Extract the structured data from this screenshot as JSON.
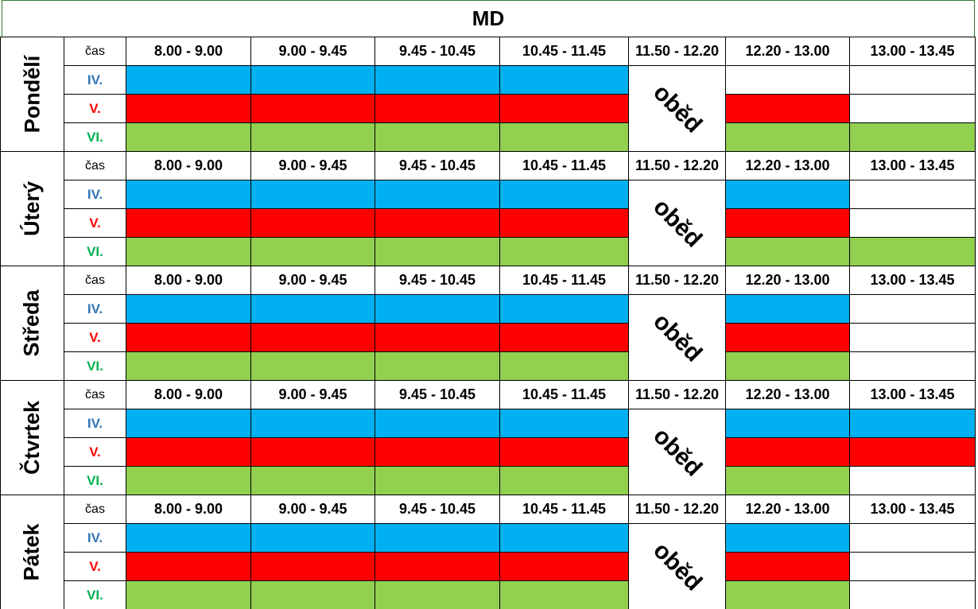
{
  "title": "MD",
  "time_label": "čas",
  "lunch": "oběd",
  "times": [
    "8.00 - 9.00",
    "9.00 - 9.45",
    "9.45 - 10.45",
    "10.45 - 11.45",
    "11.50 - 12.20",
    "12.20 - 13.00",
    "13.00 - 13.45"
  ],
  "levels": [
    {
      "label": "IV.",
      "color": "#2e75b6"
    },
    {
      "label": "V.",
      "color": "#ff0000"
    },
    {
      "label": "VI.",
      "color": "#00b050"
    }
  ],
  "days": [
    {
      "name": "Pondělí",
      "rows": [
        [
          "#00b0f0",
          "#00b0f0",
          "#00b0f0",
          "#00b0f0",
          null,
          "#ffffff",
          "#ffffff"
        ],
        [
          "#ff0000",
          "#ff0000",
          "#ff0000",
          "#ff0000",
          null,
          "#ff0000",
          "#ffffff"
        ],
        [
          "#92d050",
          "#92d050",
          "#92d050",
          "#92d050",
          null,
          "#92d050",
          "#92d050"
        ]
      ]
    },
    {
      "name": "Úterý",
      "rows": [
        [
          "#00b0f0",
          "#00b0f0",
          "#00b0f0",
          "#00b0f0",
          null,
          "#00b0f0",
          "#ffffff"
        ],
        [
          "#ff0000",
          "#ff0000",
          "#ff0000",
          "#ff0000",
          null,
          "#ff0000",
          "#ffffff"
        ],
        [
          "#92d050",
          "#92d050",
          "#92d050",
          "#92d050",
          null,
          "#92d050",
          "#92d050"
        ]
      ]
    },
    {
      "name": "Středa",
      "rows": [
        [
          "#00b0f0",
          "#00b0f0",
          "#00b0f0",
          "#00b0f0",
          null,
          "#00b0f0",
          "#ffffff"
        ],
        [
          "#ff0000",
          "#ff0000",
          "#ff0000",
          "#ff0000",
          null,
          "#ff0000",
          "#ffffff"
        ],
        [
          "#92d050",
          "#92d050",
          "#92d050",
          "#92d050",
          null,
          "#92d050",
          "#ffffff"
        ]
      ]
    },
    {
      "name": "Čtvrtek",
      "rows": [
        [
          "#00b0f0",
          "#00b0f0",
          "#00b0f0",
          "#00b0f0",
          null,
          "#00b0f0",
          "#00b0f0"
        ],
        [
          "#ff0000",
          "#ff0000",
          "#ff0000",
          "#ff0000",
          null,
          "#ff0000",
          "#ff0000"
        ],
        [
          "#92d050",
          "#92d050",
          "#92d050",
          "#92d050",
          null,
          "#92d050",
          "#ffffff"
        ]
      ]
    },
    {
      "name": "Pátek",
      "rows": [
        [
          "#00b0f0",
          "#00b0f0",
          "#00b0f0",
          "#00b0f0",
          null,
          "#00b0f0",
          "#ffffff"
        ],
        [
          "#ff0000",
          "#ff0000",
          "#ff0000",
          "#ff0000",
          null,
          "#ff0000",
          "#ffffff"
        ],
        [
          "#92d050",
          "#92d050",
          "#92d050",
          "#92d050",
          null,
          "#92d050",
          "#ffffff"
        ]
      ]
    }
  ]
}
